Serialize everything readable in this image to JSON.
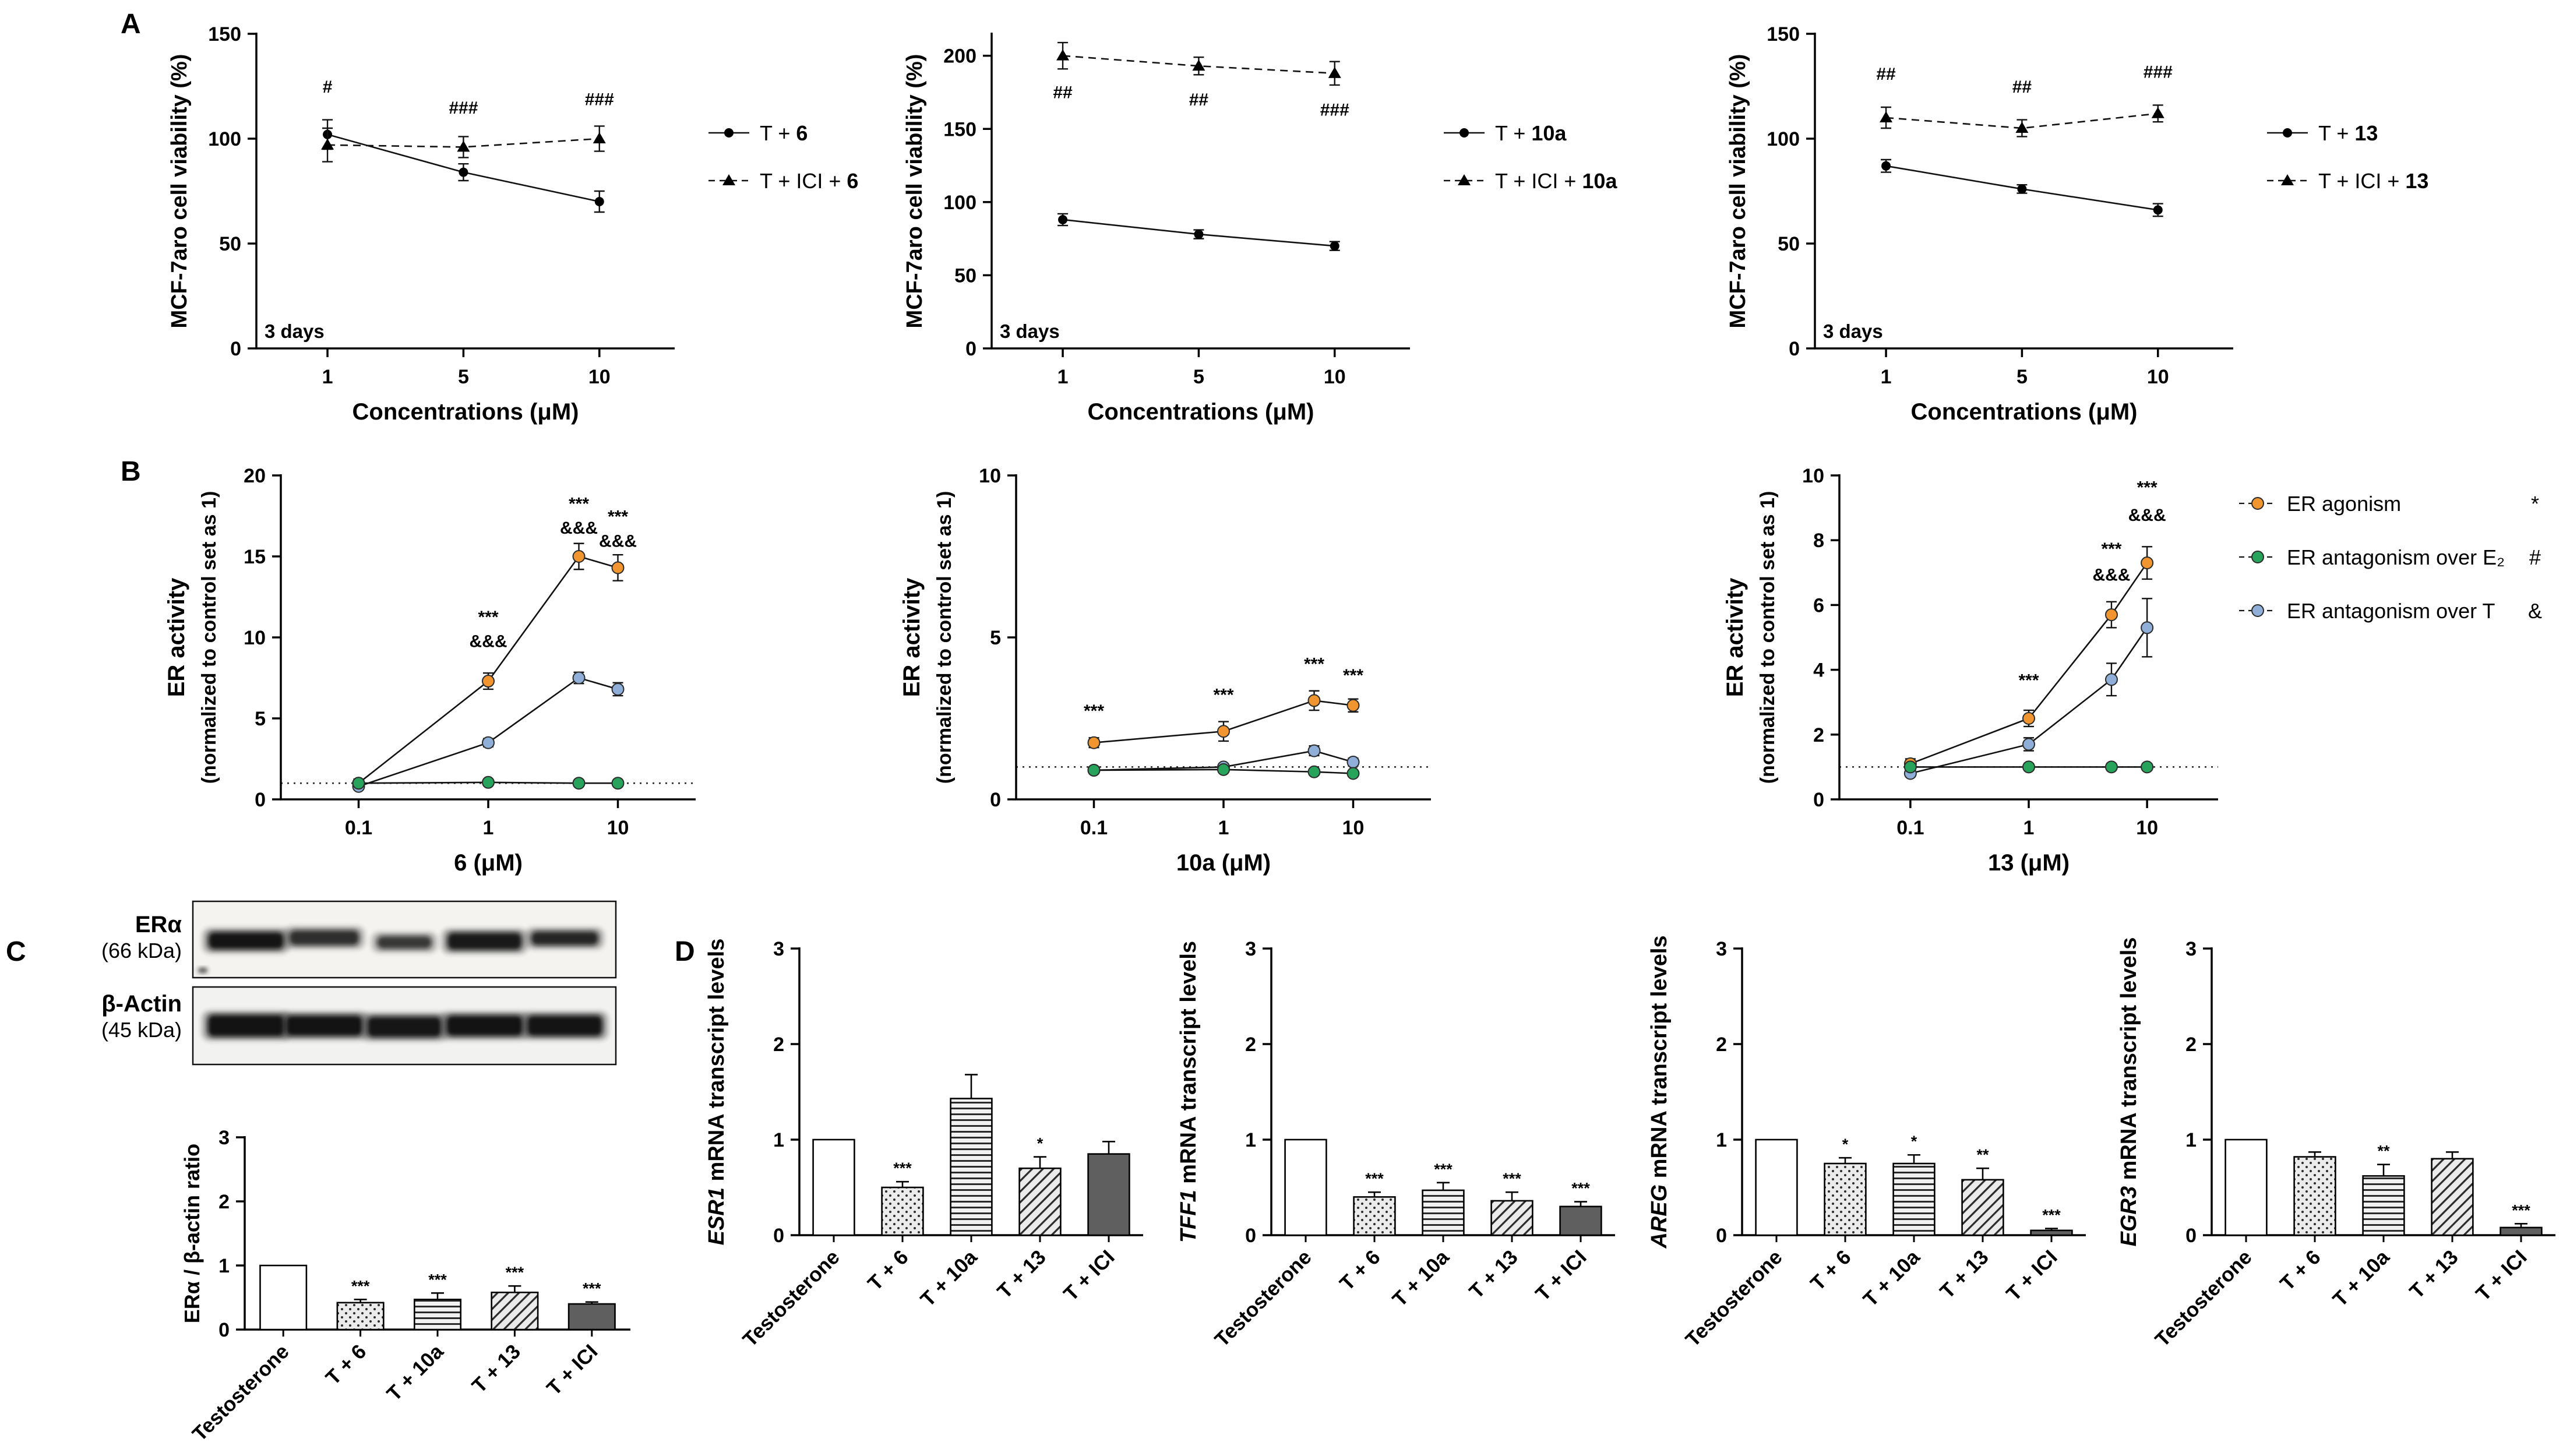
{
  "figure": {
    "panel_labels": {
      "A": "A",
      "B": "B",
      "C": "C",
      "D": "D"
    }
  },
  "blot": {
    "rows": [
      {
        "label": "ERα",
        "sublabel": "(66 kDa)"
      },
      {
        "label": "β-Actin",
        "sublabel": "(45 kDa)"
      }
    ]
  },
  "chart_data": [
    {
      "id": "A1",
      "type": "line",
      "xscale": "category",
      "x": [
        1,
        5,
        10
      ],
      "xlabel": "Concentrations (μM)",
      "ylabel": "MCF-7aro cell viability (%)",
      "ylim": [
        0,
        150
      ],
      "yticks": [
        0,
        50,
        100,
        150
      ],
      "inner_label": "3 days",
      "legend_from_series": true,
      "series": [
        {
          "prefix": "T + ",
          "bold": "6",
          "marker": "circle",
          "line": "solid",
          "values": [
            102,
            84,
            70
          ],
          "errors": [
            7,
            4,
            5
          ]
        },
        {
          "prefix": "T + ICI + ",
          "bold": "6",
          "marker": "triangle",
          "line": "dashed",
          "values": [
            97,
            96,
            100
          ],
          "errors": [
            8,
            5,
            6
          ]
        }
      ],
      "annotations": [
        {
          "x": 1,
          "y": 122,
          "text": "#"
        },
        {
          "x": 5,
          "y": 112,
          "text": "###"
        },
        {
          "x": 10,
          "y": 116,
          "text": "###"
        }
      ]
    },
    {
      "id": "A2",
      "type": "line",
      "xscale": "category",
      "x": [
        1,
        5,
        10
      ],
      "xlabel": "Concentrations (μM)",
      "ylabel": "MCF-7aro cell viability (%)",
      "ylim": [
        0,
        215
      ],
      "yticks": [
        0,
        50,
        100,
        150,
        200
      ],
      "inner_label": "3 days",
      "legend_from_series": true,
      "series": [
        {
          "prefix": "T + ",
          "bold": "10a",
          "marker": "circle",
          "line": "solid",
          "values": [
            88,
            78,
            70
          ],
          "errors": [
            4,
            3,
            3
          ]
        },
        {
          "prefix": "T + ICI + ",
          "bold": "10a",
          "marker": "triangle",
          "line": "dashed",
          "values": [
            200,
            193,
            188
          ],
          "errors": [
            9,
            6,
            8
          ]
        }
      ],
      "annotations": [
        {
          "x": 1,
          "y": 171,
          "text": "##"
        },
        {
          "x": 5,
          "y": 166,
          "text": "##"
        },
        {
          "x": 10,
          "y": 159,
          "text": "###"
        }
      ]
    },
    {
      "id": "A3",
      "type": "line",
      "xscale": "category",
      "x": [
        1,
        5,
        10
      ],
      "xlabel": "Concentrations (μM)",
      "ylabel": "MCF-7aro cell viability (%)",
      "ylim": [
        0,
        150
      ],
      "yticks": [
        0,
        50,
        100,
        150
      ],
      "inner_label": "3 days",
      "legend_from_series": true,
      "series": [
        {
          "prefix": "T + ",
          "bold": "13",
          "marker": "circle",
          "line": "solid",
          "values": [
            87,
            76,
            66
          ],
          "errors": [
            3,
            2,
            3
          ]
        },
        {
          "prefix": "T + ICI + ",
          "bold": "13",
          "marker": "triangle",
          "line": "dashed",
          "values": [
            110,
            105,
            112
          ],
          "errors": [
            5,
            4,
            4
          ]
        }
      ],
      "annotations": [
        {
          "x": 1,
          "y": 128,
          "text": "##"
        },
        {
          "x": 5,
          "y": 122,
          "text": "##"
        },
        {
          "x": 10,
          "y": 129,
          "text": "###"
        }
      ]
    },
    {
      "id": "B1",
      "type": "line",
      "xscale": "log",
      "x": [
        0.1,
        1,
        5,
        10
      ],
      "xticks": [
        0.1,
        1,
        10
      ],
      "xlabel": "6 (μM)",
      "ylabel_line1": "ER activity",
      "ylabel_line2": "(normalized to control set as 1)",
      "ylim": [
        0,
        20
      ],
      "yticks": [
        0,
        5,
        10,
        15,
        20
      ],
      "ref_line": 1,
      "series": [
        {
          "name": "ER agonism",
          "color": "#F0952F",
          "values": [
            1.0,
            7.3,
            15.0,
            14.3
          ],
          "errors": [
            0.25,
            0.5,
            0.8,
            0.8
          ]
        },
        {
          "name": "ER antagonism over T",
          "color": "#8FAFD8",
          "values": [
            0.8,
            3.5,
            7.5,
            6.8
          ],
          "errors": [
            0.2,
            0.25,
            0.35,
            0.4
          ]
        },
        {
          "name": "ER antagonism over E₂",
          "color": "#27A35B",
          "values": [
            1.0,
            1.05,
            1.0,
            1.0
          ],
          "errors": [
            0.15,
            0.15,
            0.15,
            0.15
          ]
        }
      ],
      "annotations": [
        {
          "x": 1,
          "y": 10.9,
          "text": "***"
        },
        {
          "x": 1,
          "y": 9.4,
          "text": "&&&"
        },
        {
          "x": 5,
          "y": 17.9,
          "text": "***"
        },
        {
          "x": 5,
          "y": 16.4,
          "text": "&&&"
        },
        {
          "x": 10,
          "y": 17.1,
          "text": "***"
        },
        {
          "x": 10,
          "y": 15.6,
          "text": "&&&"
        }
      ]
    },
    {
      "id": "B2",
      "type": "line",
      "xscale": "log",
      "x": [
        0.1,
        1,
        5,
        10
      ],
      "xticks": [
        0.1,
        1,
        10
      ],
      "xlabel": "10a (μM)",
      "ylabel_line1": "ER activity",
      "ylabel_line2": "(normalized to control set as 1)",
      "ylim": [
        0,
        10
      ],
      "yticks": [
        0,
        5,
        10
      ],
      "ref_line": 1,
      "series": [
        {
          "name": "ER agonism",
          "color": "#F0952F",
          "values": [
            1.75,
            2.1,
            3.05,
            2.9
          ],
          "errors": [
            0.15,
            0.3,
            0.3,
            0.2
          ]
        },
        {
          "name": "ER antagonism over T",
          "color": "#8FAFD8",
          "values": [
            0.9,
            1.0,
            1.5,
            1.15
          ],
          "errors": [
            0.1,
            0.1,
            0.15,
            0.12
          ]
        },
        {
          "name": "ER antagonism over E₂",
          "color": "#27A35B",
          "values": [
            0.9,
            0.92,
            0.85,
            0.8
          ],
          "errors": [
            0.08,
            0.08,
            0.1,
            0.08
          ]
        }
      ],
      "annotations": [
        {
          "x": 0.1,
          "y": 2.55,
          "text": "***"
        },
        {
          "x": 1,
          "y": 3.05,
          "text": "***"
        },
        {
          "x": 5,
          "y": 4.0,
          "text": "***"
        },
        {
          "x": 10,
          "y": 3.65,
          "text": "***"
        }
      ]
    },
    {
      "id": "B3",
      "type": "line",
      "xscale": "log",
      "x": [
        0.1,
        1,
        5,
        10
      ],
      "xticks": [
        0.1,
        1,
        10
      ],
      "xlabel": "13 (μM)",
      "ylabel_line1": "ER activity",
      "ylabel_line2": "(normalized to control set as 1)",
      "ylim": [
        0,
        10
      ],
      "yticks": [
        0,
        2,
        4,
        6,
        8,
        10
      ],
      "ref_line": 1,
      "series": [
        {
          "name": "ER agonism",
          "color": "#F0952F",
          "values": [
            1.1,
            2.5,
            5.7,
            7.3
          ],
          "errors": [
            0.15,
            0.25,
            0.4,
            0.5
          ]
        },
        {
          "name": "ER antagonism over T",
          "color": "#8FAFD8",
          "values": [
            0.8,
            1.7,
            3.7,
            5.3
          ],
          "errors": [
            0.1,
            0.2,
            0.5,
            0.9
          ]
        },
        {
          "name": "ER antagonism over E₂",
          "color": "#27A35B",
          "values": [
            1.0,
            1.0,
            1.0,
            1.0
          ],
          "errors": [
            0.1,
            0.1,
            0.1,
            0.1
          ]
        }
      ],
      "annotations": [
        {
          "x": 1,
          "y": 3.5,
          "text": "***"
        },
        {
          "x": 5,
          "y": 7.55,
          "text": "***"
        },
        {
          "x": 5,
          "y": 6.75,
          "text": "&&&"
        },
        {
          "x": 10,
          "y": 9.45,
          "text": "***"
        },
        {
          "x": 10,
          "y": 8.6,
          "text": "&&&"
        }
      ],
      "legend": {
        "entries": [
          {
            "name": "ER agonism",
            "color": "#F0952F",
            "symbol": "*"
          },
          {
            "name": "ER antagonism over E₂",
            "color": "#27A35B",
            "symbol": "#"
          },
          {
            "name": "ER antagonism over T",
            "color": "#8FAFD8",
            "symbol": "&"
          }
        ]
      }
    },
    {
      "id": "C",
      "type": "bar",
      "ylabel_plain": "ERα / β-actin ratio",
      "ylim": [
        0,
        3
      ],
      "yticks": [
        0,
        1,
        2,
        3
      ],
      "categories": [
        "Testosterone",
        "T + 6",
        "T + 10a",
        "T + 13",
        "T + ICI"
      ],
      "values": [
        1.0,
        0.42,
        0.47,
        0.58,
        0.4
      ],
      "errors": [
        0,
        0.05,
        0.1,
        0.1,
        0.03
      ],
      "annotations": [
        "",
        "***",
        "***",
        "***",
        "***"
      ],
      "patterns": [
        "white",
        "dots",
        "hlines",
        "diag",
        "solid"
      ]
    },
    {
      "id": "D1",
      "type": "bar",
      "ylabel_italic": "ESR1",
      "ylabel_rest": " mRNA transcript levels",
      "ylim": [
        0,
        3
      ],
      "yticks": [
        0,
        1,
        2,
        3
      ],
      "categories": [
        "Testosterone",
        "T + 6",
        "T + 10a",
        "T + 13",
        "T + ICI"
      ],
      "values": [
        1.0,
        0.5,
        1.43,
        0.7,
        0.85
      ],
      "errors": [
        0,
        0.06,
        0.25,
        0.12,
        0.13
      ],
      "annotations": [
        "",
        "***",
        "",
        "*",
        ""
      ],
      "patterns": [
        "white",
        "dots",
        "hlines",
        "diag",
        "solid"
      ]
    },
    {
      "id": "D2",
      "type": "bar",
      "ylabel_italic": "TFF1",
      "ylabel_rest": " mRNA transcript levels",
      "ylim": [
        0,
        3
      ],
      "yticks": [
        0,
        1,
        2,
        3
      ],
      "categories": [
        "Testosterone",
        "T + 6",
        "T + 10a",
        "T + 13",
        "T + ICI"
      ],
      "values": [
        1.0,
        0.4,
        0.47,
        0.36,
        0.3
      ],
      "errors": [
        0,
        0.05,
        0.08,
        0.09,
        0.05
      ],
      "annotations": [
        "",
        "***",
        "***",
        "***",
        "***"
      ],
      "patterns": [
        "white",
        "dots",
        "hlines",
        "diag",
        "solid"
      ]
    },
    {
      "id": "D3",
      "type": "bar",
      "ylabel_italic": "AREG",
      "ylabel_rest": " mRNA transcript levels",
      "ylim": [
        0,
        3
      ],
      "yticks": [
        0,
        1,
        2,
        3
      ],
      "categories": [
        "Testosterone",
        "T + 6",
        "T + 10a",
        "T + 13",
        "T + ICI"
      ],
      "values": [
        1.0,
        0.75,
        0.75,
        0.58,
        0.05
      ],
      "errors": [
        0,
        0.06,
        0.09,
        0.12,
        0.02
      ],
      "annotations": [
        "",
        "*",
        "*",
        "**",
        "***"
      ],
      "patterns": [
        "white",
        "dots",
        "hlines",
        "diag",
        "solid"
      ]
    },
    {
      "id": "D4",
      "type": "bar",
      "ylabel_italic": "EGR3",
      "ylabel_rest": " mRNA transcript levels",
      "ylim": [
        0,
        3
      ],
      "yticks": [
        0,
        1,
        2,
        3
      ],
      "categories": [
        "Testosterone",
        "T + 6",
        "T + 10a",
        "T + 13",
        "T + ICI"
      ],
      "values": [
        1.0,
        0.82,
        0.62,
        0.8,
        0.08
      ],
      "errors": [
        0,
        0.05,
        0.12,
        0.07,
        0.04
      ],
      "annotations": [
        "",
        "",
        "**",
        "",
        "***"
      ],
      "patterns": [
        "white",
        "dots",
        "hlines",
        "diag",
        "solid"
      ]
    }
  ]
}
